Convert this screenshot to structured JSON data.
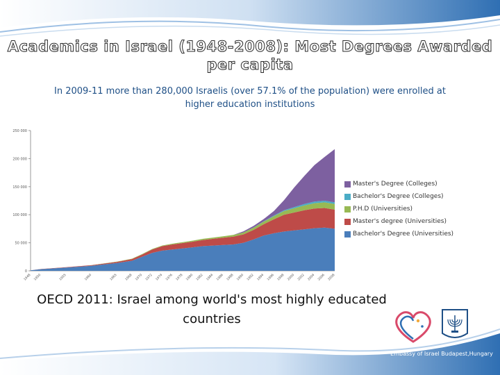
{
  "slide": {
    "title": "Academics in Israel (1948-2008): Most Degrees Awarded per capita",
    "subtitle": "In 2009-11 more than 280,000 Israelis (over 57.1% of the population) were enrolled at higher education institutions",
    "oecd_text": "OECD 2011: Israel among world's most highly educated countries",
    "embassy_text": "Embassy of Israel Budapest,Hungary"
  },
  "colors": {
    "top_band": "#2f6fb3",
    "bottom_band": "#2f6fb3",
    "subtitle": "#1e4f86"
  },
  "chart_data": {
    "type": "area",
    "stacked": true,
    "ylim": [
      0,
      250000
    ],
    "yticks": [
      0,
      50000,
      100000,
      150000,
      200000,
      250000
    ],
    "ytick_labels": [
      "0",
      "50 000",
      "100 000",
      "150 000",
      "200 000",
      "250 000"
    ],
    "x": [
      1948,
      1950,
      1955,
      1960,
      1965,
      1968,
      1970,
      1972,
      1974,
      1976,
      1978,
      1980,
      1982,
      1984,
      1986,
      1988,
      1990,
      1992,
      1994,
      1996,
      1998,
      2000,
      2002,
      2004,
      2006,
      2008
    ],
    "series": [
      {
        "name": "Bachelor's Degree (Universities)",
        "color": "#4a7ebb",
        "values": [
          1000,
          3000,
          6000,
          9000,
          14000,
          18000,
          25000,
          32000,
          36000,
          38000,
          40000,
          42000,
          44000,
          45000,
          46000,
          47000,
          50000,
          56000,
          63000,
          67000,
          70000,
          72000,
          74000,
          76000,
          77000,
          75000
        ]
      },
      {
        "name": "Master's degree (Universities)",
        "color": "#be4b48",
        "values": [
          0,
          200,
          500,
          1000,
          2000,
          3000,
          4000,
          6000,
          8000,
          9000,
          9500,
          10000,
          11000,
          12000,
          13000,
          14000,
          15000,
          17000,
          20000,
          25000,
          30000,
          32000,
          34000,
          35000,
          35000,
          34000
        ]
      },
      {
        "name": "P.H.D (Universities)",
        "color": "#98b954",
        "values": [
          0,
          0,
          100,
          200,
          400,
          600,
          800,
          1000,
          1200,
          1400,
          1600,
          1800,
          2000,
          2300,
          2600,
          3000,
          3400,
          4000,
          4800,
          5500,
          6500,
          7500,
          8500,
          9500,
          10000,
          10000
        ]
      },
      {
        "name": "Bachelor's Degree (Colleges)",
        "color": "#4aacc6",
        "values": [
          0,
          0,
          0,
          0,
          0,
          0,
          0,
          0,
          0,
          0,
          0,
          0,
          0,
          0,
          0,
          0,
          0,
          200,
          500,
          1000,
          1500,
          2000,
          2500,
          3000,
          3000,
          3000
        ]
      },
      {
        "name": "Master's Degree (Colleges)",
        "color": "#7d60a0",
        "values": [
          0,
          0,
          0,
          0,
          0,
          0,
          0,
          0,
          0,
          0,
          0,
          0,
          0,
          0,
          0,
          0,
          2000,
          3000,
          4000,
          8000,
          18000,
          35000,
          50000,
          65000,
          78000,
          95000
        ]
      }
    ],
    "legend_order": [
      "Master's Degree (Colleges)",
      "Bachelor's Degree (Colleges)",
      "P.H.D (Universities)",
      "Master's degree (Universities)",
      "Bachelor's Degree (Universities)"
    ],
    "legend_position": "right"
  }
}
